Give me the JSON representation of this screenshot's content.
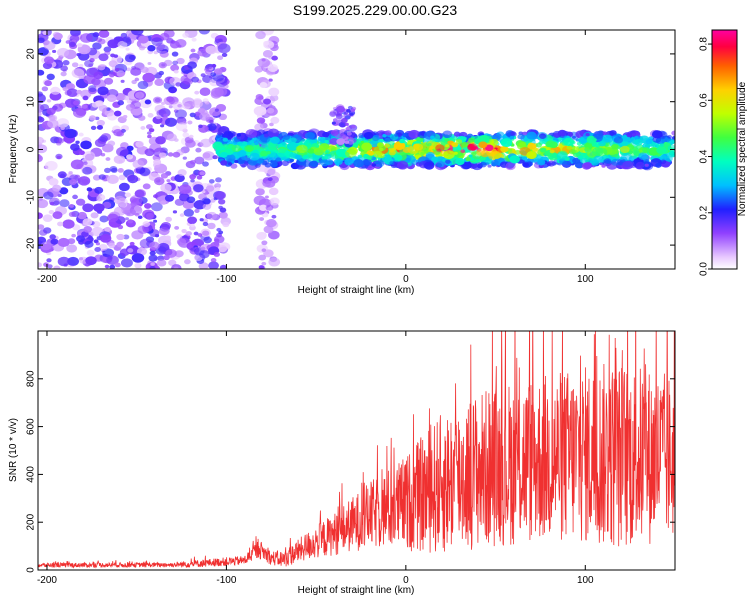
{
  "title": "S199.2025.229.00.00.G23",
  "colors": {
    "snr_line": "#f03030",
    "axis": "#000000",
    "background": "#ffffff"
  },
  "chart_data": [
    {
      "type": "heatmap",
      "title": "S199.2025.229.00.00.G23",
      "xlabel": "Height of straight line (km)",
      "ylabel": "Frequency (Hz)",
      "xlim": [
        -205,
        150
      ],
      "ylim": [
        -25,
        25
      ],
      "xticks": [
        -200,
        -100,
        0,
        100
      ],
      "xtick_labels": [
        "-200",
        "-100",
        "0",
        "100"
      ],
      "yticks": [
        -20,
        -10,
        0,
        10,
        20
      ],
      "ytick_labels": [
        "-20",
        "-10",
        "0",
        "10",
        "20"
      ],
      "colorbar": {
        "label": "Normalized spectral amplitude",
        "range": [
          0,
          0.85
        ],
        "ticks": [
          0.0,
          0.2,
          0.4,
          0.6,
          0.8
        ],
        "tick_labels": [
          "0.0",
          "0.2",
          "0.4",
          "0.6",
          "0.8"
        ]
      },
      "regions": [
        {
          "name": "broadband-noise",
          "x_range": [
            -205,
            -100
          ],
          "y_range": [
            -25,
            25
          ],
          "amplitude": 0.1
        },
        {
          "name": "noise-strip",
          "x_range": [
            -82,
            -73
          ],
          "y_range": [
            -25,
            25
          ],
          "amplitude": 0.08
        },
        {
          "name": "signal-band",
          "x_range": [
            -105,
            150
          ],
          "center_hz": 0,
          "half_width_hz": 3.5,
          "peak_amplitude": 0.85
        },
        {
          "name": "bump",
          "x": -35,
          "y": 8,
          "amplitude": 0.15
        }
      ]
    },
    {
      "type": "line",
      "xlabel": "Height of straight line (km)",
      "ylabel": "SNR (10 * v/v)",
      "xlim": [
        -205,
        150
      ],
      "ylim": [
        0,
        1000
      ],
      "xticks": [
        -200,
        -100,
        0,
        100
      ],
      "xtick_labels": [
        "-200",
        "-100",
        "0",
        "100"
      ],
      "yticks": [
        0,
        200,
        400,
        600,
        800
      ],
      "ytick_labels": [
        "0",
        "200",
        "400",
        "600",
        "800"
      ],
      "series": [
        {
          "name": "SNR",
          "envelope_x": [
            -205,
            -130,
            -120,
            -90,
            -82,
            -75,
            -68,
            -55,
            -40,
            -20,
            0,
            20,
            40,
            60,
            80,
            100,
            120,
            150
          ],
          "envelope_mean": [
            20,
            22,
            25,
            40,
            90,
            50,
            45,
            100,
            150,
            230,
            280,
            360,
            420,
            450,
            470,
            480,
            480,
            470
          ],
          "envelope_spread": [
            10,
            10,
            15,
            20,
            40,
            30,
            35,
            60,
            90,
            140,
            200,
            300,
            330,
            350,
            360,
            380,
            400,
            350
          ]
        }
      ]
    }
  ]
}
